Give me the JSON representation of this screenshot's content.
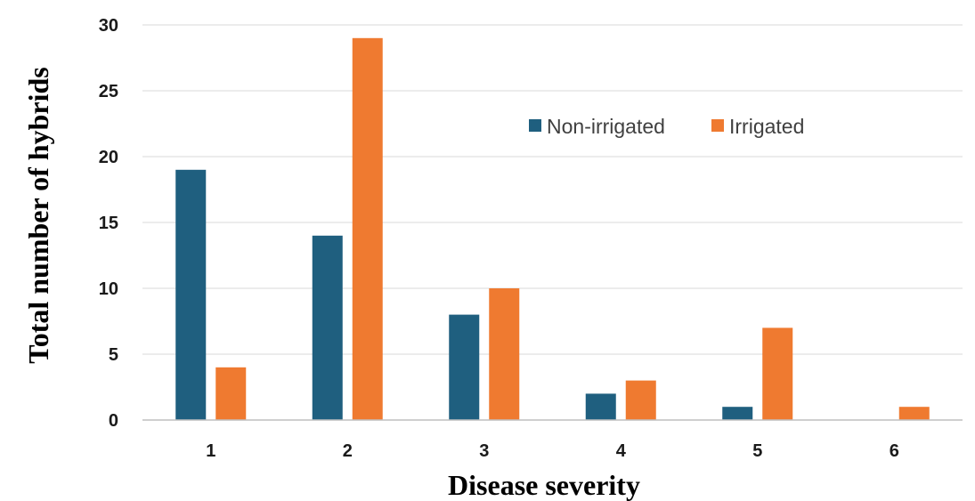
{
  "chart_data": {
    "type": "bar",
    "title": "",
    "xlabel": "Disease severity",
    "ylabel": "Total number of hybrids",
    "categories": [
      "1",
      "2",
      "3",
      "4",
      "5",
      "6"
    ],
    "series": [
      {
        "name": "Non-irrigated",
        "color": "#1f5f7f",
        "values": [
          19,
          14,
          8,
          2,
          1,
          0
        ]
      },
      {
        "name": "Irrigated",
        "color": "#ef7a30",
        "values": [
          4,
          29,
          10,
          3,
          7,
          1
        ]
      }
    ],
    "ylim": [
      0,
      30
    ],
    "yticks": [
      "0",
      "5",
      "10",
      "15",
      "20",
      "25",
      "30"
    ],
    "grid": true,
    "legend_position": "top-center"
  }
}
